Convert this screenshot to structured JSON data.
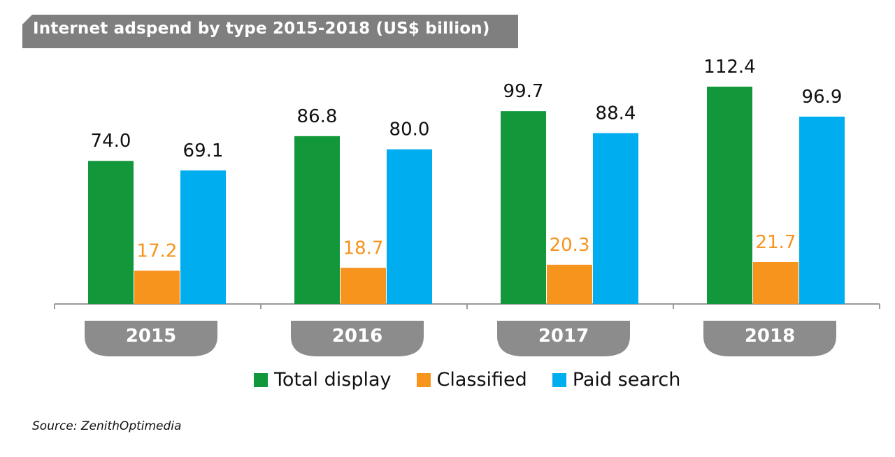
{
  "title": "Internet adspend by type 2015-2018 (US$ billion)",
  "source": "Source: ZenithOptimedia",
  "chart_data": {
    "type": "bar",
    "title": "Internet adspend by type 2015-2018 (US$ billion)",
    "categories": [
      "2015",
      "2016",
      "2017",
      "2018"
    ],
    "series": [
      {
        "name": "Total display",
        "values": [
          74.0,
          86.8,
          99.7,
          112.4
        ],
        "color": "#13973b",
        "label_color": "#111111"
      },
      {
        "name": "Classified",
        "values": [
          17.2,
          18.7,
          20.3,
          21.7
        ],
        "color": "#f7941d",
        "label_color": "#f7941d"
      },
      {
        "name": "Paid search",
        "values": [
          69.1,
          80.0,
          88.4,
          96.9
        ],
        "color": "#00aeef",
        "label_color": "#111111"
      }
    ],
    "value_labels": [
      [
        "74.0",
        "86.8",
        "99.7",
        "112.4"
      ],
      [
        "17.2",
        "18.7",
        "20.3",
        "21.7"
      ],
      [
        "69.1",
        "80.0",
        "88.4",
        "96.9"
      ]
    ],
    "legend_position": "bottom",
    "grid": false,
    "ylim": [
      0,
      112.4
    ]
  },
  "colors": {
    "banner": "#7f7f7f",
    "category_tab": "#8c8c8c",
    "axis": "#999999"
  }
}
